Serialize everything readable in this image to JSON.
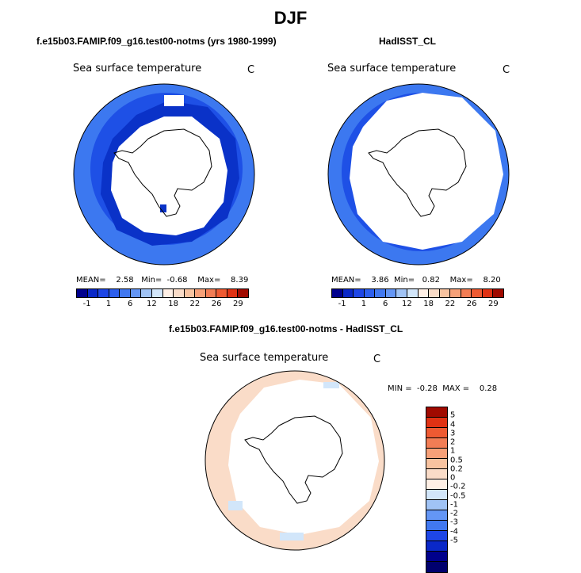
{
  "title": "DJF",
  "panels": [
    {
      "title": "f.e15b03.FAMIP.f09_g16.test00-notms (yrs 1980-1999)",
      "field": "Sea surface temperature",
      "unit": "C",
      "stats": {
        "mean_label": "MEAN=",
        "mean": "2.58",
        "min_label": "Min=",
        "min": "-0.68",
        "max_label": "Max=",
        "max": "8.39"
      }
    },
    {
      "title": "HadISST_CL",
      "field": "Sea surface temperature",
      "unit": "C",
      "stats": {
        "mean_label": "MEAN=",
        "mean": "3.86",
        "min_label": "Min=",
        "min": "0.82",
        "max_label": "Max=",
        "max": "8.20"
      }
    },
    {
      "title": "f.e15b03.FAMIP.f09_g16.test00-notms - HadISST_CL",
      "field": "Sea surface temperature",
      "unit": "C",
      "stats": {
        "min_label": "MIN =",
        "min": "-0.28",
        "max_label": "MAX =",
        "max": "0.28"
      }
    }
  ],
  "colorbar_abs": {
    "labels": [
      "-1",
      "1",
      "6",
      "12",
      "18",
      "22",
      "26",
      "29"
    ],
    "colors": [
      "#00008c",
      "#0a28c8",
      "#1e46e6",
      "#2d5fee",
      "#4178f0",
      "#6496f5",
      "#a0c3f5",
      "#d2e6fa",
      "#fff0e6",
      "#fadcc8",
      "#f8c3a0",
      "#f6a078",
      "#f27d55",
      "#ee5a32",
      "#e03214",
      "#a00a00"
    ]
  },
  "colorbar_diff": {
    "labels": [
      "5",
      "4",
      "3",
      "2",
      "1",
      "0.5",
      "0.2",
      "0",
      "-0.2",
      "-0.5",
      "-1",
      "-2",
      "-3",
      "-4",
      "-5"
    ],
    "colors": [
      "#a00a00",
      "#e03214",
      "#ee5a32",
      "#f27d55",
      "#f6a078",
      "#f8c3a0",
      "#fadcc8",
      "#fff0e6",
      "#d2e6fa",
      "#a0c3f5",
      "#6496f5",
      "#4178f0",
      "#1e46e6",
      "#0a28c8",
      "#00008c",
      "#00006e"
    ]
  },
  "map_colors": {
    "ocean_mid": "#1e50e6",
    "ocean_warm": "#3c78f0",
    "ocean_cold": "#0a32c8",
    "diff_warm": "#fadcc8",
    "diff_cool": "#d2e6fa",
    "land": "#ffffff"
  }
}
